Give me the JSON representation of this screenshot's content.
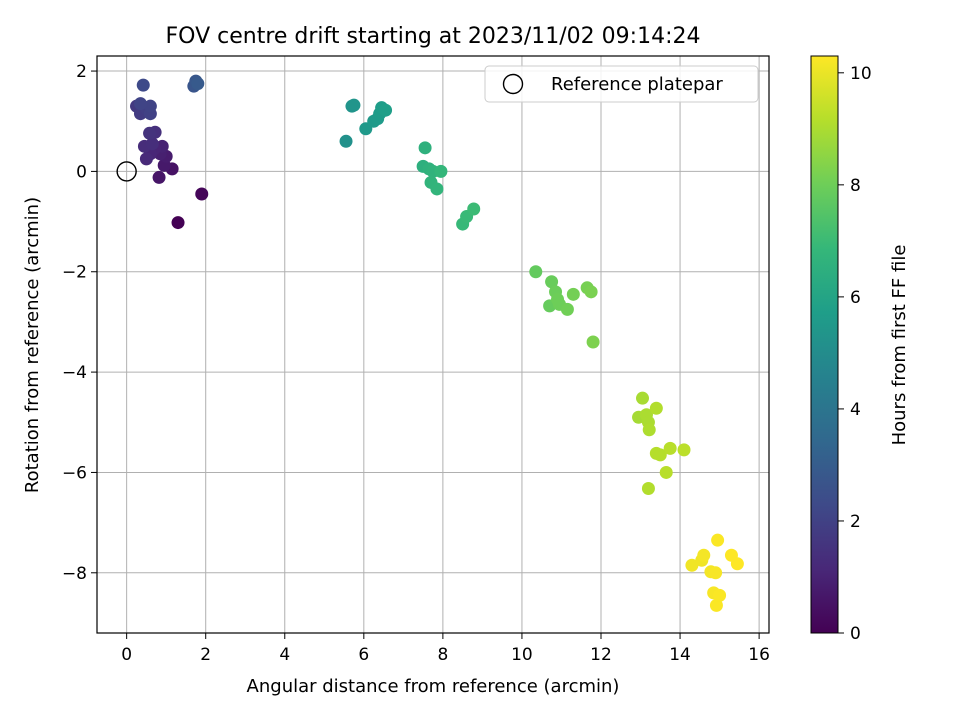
{
  "chart_data": {
    "type": "scatter",
    "title": "FOV centre drift starting at 2023/11/02 09:14:24",
    "xlabel": "Angular distance from reference (arcmin)",
    "ylabel": "Rotation from reference (arcmin)",
    "xlim": [
      -0.75,
      16.25
    ],
    "ylim": [
      -9.2,
      2.3
    ],
    "x_ticks": [
      0,
      2,
      4,
      6,
      8,
      10,
      12,
      14,
      16
    ],
    "x_tick_labels": [
      "0",
      "2",
      "4",
      "6",
      "8",
      "10",
      "12",
      "14",
      "16"
    ],
    "y_ticks": [
      2,
      0,
      -2,
      -4,
      -6,
      -8
    ],
    "y_tick_labels": [
      "2",
      "0",
      "−2",
      "−4",
      "−6",
      "−8"
    ],
    "grid": true,
    "legend": {
      "placement": "top-right",
      "entries": [
        {
          "label": "Reference platepar",
          "marker": "open-circle"
        }
      ]
    },
    "reference_point": {
      "x": 0,
      "y": 0
    },
    "colorbar": {
      "label": "Hours from first FF file",
      "colormap": "viridis",
      "range": [
        0,
        10.3
      ],
      "ticks": [
        0,
        2,
        4,
        6,
        8,
        10
      ],
      "tick_labels": [
        "0",
        "2",
        "4",
        "6",
        "8",
        "10"
      ]
    },
    "colormap_stops": [
      "#440154",
      "#482878",
      "#3e4a89",
      "#31688e",
      "#26828e",
      "#1f9e89",
      "#35b779",
      "#6ece58",
      "#b5de2b",
      "#fde725"
    ],
    "points": [
      {
        "x": 1.3,
        "y": -1.02,
        "hours": 0.0
      },
      {
        "x": 1.9,
        "y": -0.45,
        "hours": 0.15
      },
      {
        "x": 1.15,
        "y": 0.05,
        "hours": 0.5
      },
      {
        "x": 0.82,
        "y": -0.12,
        "hours": 0.6
      },
      {
        "x": 0.95,
        "y": 0.12,
        "hours": 0.7
      },
      {
        "x": 1.0,
        "y": 0.3,
        "hours": 0.8
      },
      {
        "x": 0.85,
        "y": 0.35,
        "hours": 0.9
      },
      {
        "x": 0.9,
        "y": 0.5,
        "hours": 1.0
      },
      {
        "x": 0.7,
        "y": 0.45,
        "hours": 1.05
      },
      {
        "x": 0.6,
        "y": 0.35,
        "hours": 1.1
      },
      {
        "x": 0.5,
        "y": 0.25,
        "hours": 1.2
      },
      {
        "x": 0.45,
        "y": 0.5,
        "hours": 1.3
      },
      {
        "x": 0.65,
        "y": 0.55,
        "hours": 1.35
      },
      {
        "x": 0.72,
        "y": 0.78,
        "hours": 1.4
      },
      {
        "x": 0.58,
        "y": 0.76,
        "hours": 1.5
      },
      {
        "x": 0.25,
        "y": 1.3,
        "hours": 1.7
      },
      {
        "x": 0.35,
        "y": 1.15,
        "hours": 1.8
      },
      {
        "x": 0.5,
        "y": 1.25,
        "hours": 1.9
      },
      {
        "x": 0.6,
        "y": 1.15,
        "hours": 2.0
      },
      {
        "x": 0.6,
        "y": 1.3,
        "hours": 2.05
      },
      {
        "x": 0.35,
        "y": 1.35,
        "hours": 2.1
      },
      {
        "x": 0.42,
        "y": 1.72,
        "hours": 2.3
      },
      {
        "x": 1.7,
        "y": 1.7,
        "hours": 2.7
      },
      {
        "x": 1.75,
        "y": 1.8,
        "hours": 2.8
      },
      {
        "x": 1.8,
        "y": 1.75,
        "hours": 2.9
      },
      {
        "x": 5.55,
        "y": 0.6,
        "hours": 5.2
      },
      {
        "x": 5.7,
        "y": 1.3,
        "hours": 5.3
      },
      {
        "x": 5.75,
        "y": 1.32,
        "hours": 5.35
      },
      {
        "x": 6.05,
        "y": 0.85,
        "hours": 5.5
      },
      {
        "x": 6.25,
        "y": 1.0,
        "hours": 5.55
      },
      {
        "x": 6.35,
        "y": 1.05,
        "hours": 5.6
      },
      {
        "x": 6.4,
        "y": 1.15,
        "hours": 5.65
      },
      {
        "x": 6.45,
        "y": 1.27,
        "hours": 5.7
      },
      {
        "x": 6.55,
        "y": 1.22,
        "hours": 5.75
      },
      {
        "x": 7.5,
        "y": 0.1,
        "hours": 6.5
      },
      {
        "x": 7.55,
        "y": 0.47,
        "hours": 6.55
      },
      {
        "x": 7.65,
        "y": 0.05,
        "hours": 6.6
      },
      {
        "x": 7.75,
        "y": 0.0,
        "hours": 6.65
      },
      {
        "x": 7.7,
        "y": -0.22,
        "hours": 6.7
      },
      {
        "x": 7.85,
        "y": -0.35,
        "hours": 6.75
      },
      {
        "x": 7.95,
        "y": 0.0,
        "hours": 6.8
      },
      {
        "x": 8.5,
        "y": -1.05,
        "hours": 6.9
      },
      {
        "x": 8.6,
        "y": -0.9,
        "hours": 6.95
      },
      {
        "x": 8.78,
        "y": -0.75,
        "hours": 7.0
      },
      {
        "x": 10.35,
        "y": -2.0,
        "hours": 7.8
      },
      {
        "x": 10.7,
        "y": -2.68,
        "hours": 7.85
      },
      {
        "x": 10.75,
        "y": -2.2,
        "hours": 7.9
      },
      {
        "x": 10.85,
        "y": -2.4,
        "hours": 7.95
      },
      {
        "x": 10.9,
        "y": -2.55,
        "hours": 8.0
      },
      {
        "x": 10.95,
        "y": -2.65,
        "hours": 8.0
      },
      {
        "x": 11.15,
        "y": -2.75,
        "hours": 8.05
      },
      {
        "x": 11.3,
        "y": -2.45,
        "hours": 8.1
      },
      {
        "x": 11.65,
        "y": -2.32,
        "hours": 8.15
      },
      {
        "x": 11.75,
        "y": -2.4,
        "hours": 8.2
      },
      {
        "x": 11.8,
        "y": -3.4,
        "hours": 8.25
      },
      {
        "x": 12.95,
        "y": -4.9,
        "hours": 8.9
      },
      {
        "x": 13.05,
        "y": -4.52,
        "hours": 8.95
      },
      {
        "x": 13.15,
        "y": -4.85,
        "hours": 9.0
      },
      {
        "x": 13.2,
        "y": -5.0,
        "hours": 9.0
      },
      {
        "x": 13.22,
        "y": -5.15,
        "hours": 9.05
      },
      {
        "x": 13.2,
        "y": -6.32,
        "hours": 9.1
      },
      {
        "x": 13.4,
        "y": -4.72,
        "hours": 9.1
      },
      {
        "x": 13.4,
        "y": -5.62,
        "hours": 9.15
      },
      {
        "x": 13.5,
        "y": -5.65,
        "hours": 9.15
      },
      {
        "x": 13.65,
        "y": -6.0,
        "hours": 9.2
      },
      {
        "x": 13.75,
        "y": -5.52,
        "hours": 9.2
      },
      {
        "x": 14.1,
        "y": -5.55,
        "hours": 9.25
      },
      {
        "x": 14.3,
        "y": -7.85,
        "hours": 10.1
      },
      {
        "x": 14.55,
        "y": -7.75,
        "hours": 10.1
      },
      {
        "x": 14.6,
        "y": -7.65,
        "hours": 10.15
      },
      {
        "x": 14.78,
        "y": -7.98,
        "hours": 10.15
      },
      {
        "x": 14.85,
        "y": -8.4,
        "hours": 10.2
      },
      {
        "x": 14.9,
        "y": -8.0,
        "hours": 10.2
      },
      {
        "x": 14.92,
        "y": -8.65,
        "hours": 10.25
      },
      {
        "x": 14.95,
        "y": -7.35,
        "hours": 10.25
      },
      {
        "x": 15.0,
        "y": -8.45,
        "hours": 10.25
      },
      {
        "x": 15.3,
        "y": -7.65,
        "hours": 10.3
      },
      {
        "x": 15.45,
        "y": -7.82,
        "hours": 10.3
      }
    ]
  }
}
